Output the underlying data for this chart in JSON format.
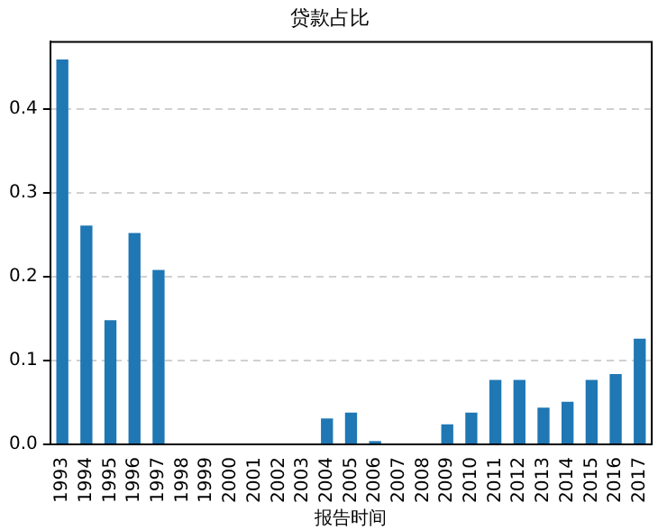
{
  "chart_data": {
    "type": "bar",
    "title": "贷款占比",
    "xlabel": "报告时间",
    "categories": [
      "1993",
      "1994",
      "1995",
      "1996",
      "1997",
      "1998",
      "1999",
      "2000",
      "2001",
      "2002",
      "2003",
      "2004",
      "2005",
      "2006",
      "2007",
      "2008",
      "2009",
      "2010",
      "2011",
      "2012",
      "2013",
      "2014",
      "2015",
      "2016",
      "2017"
    ],
    "series": [
      {
        "color": "#1f77b4",
        "values": [
          0.459,
          0.261,
          0.148,
          0.252,
          0.208,
          0,
          0,
          0,
          0,
          0,
          0,
          0.031,
          0.038,
          0.004,
          0,
          0,
          0.024,
          0.038,
          0.077,
          0.077,
          0.044,
          0.051,
          0.077,
          0.084,
          0.126
        ]
      }
    ],
    "ylim": [
      0,
      0.48
    ],
    "yticks": [
      {
        "value": 0,
        "label": "0.0"
      },
      {
        "value": 0.1,
        "label": "0.1"
      },
      {
        "value": 0.2,
        "label": "0.2"
      },
      {
        "value": 0.3,
        "label": "0.3"
      },
      {
        "value": 0.4,
        "label": "0.4"
      }
    ],
    "grid": "y"
  }
}
